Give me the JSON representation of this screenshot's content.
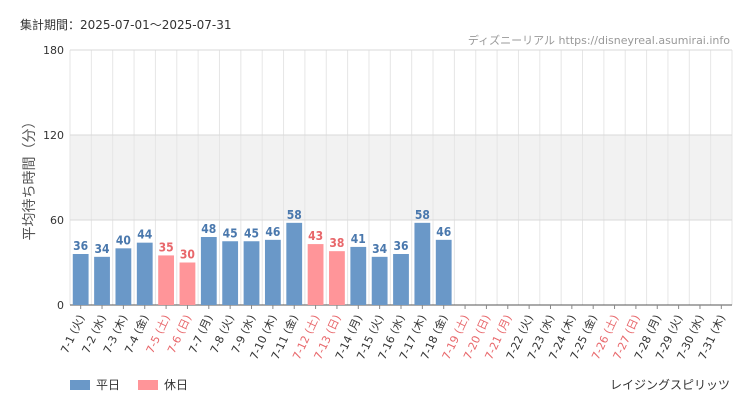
{
  "header": {
    "period_label": "集計期間：2025-07-01～2025-07-31",
    "source_label": "ディズニーリアル https://disneyreal.asumirai.info"
  },
  "footer": {
    "attraction_name": "レイジングスピリッツ"
  },
  "colors": {
    "weekday": "#6a98c8",
    "holiday": "#ff9599",
    "weekday_text": "#4a78ad",
    "holiday_text": "#e8676b",
    "band": "#f2f2f2"
  },
  "chart_data": {
    "type": "bar",
    "ylabel": "平均待ち時間（分）",
    "ylim": [
      0,
      180
    ],
    "yticks": [
      0,
      60,
      120,
      180
    ],
    "shaded_band": [
      60,
      120
    ],
    "categories": [
      "7-1 (火)",
      "7-2 (水)",
      "7-3 (木)",
      "7-4 (金)",
      "7-5 (土)",
      "7-6 (日)",
      "7-7 (月)",
      "7-8 (火)",
      "7-9 (水)",
      "7-10 (木)",
      "7-11 (金)",
      "7-12 (土)",
      "7-13 (日)",
      "7-14 (月)",
      "7-15 (火)",
      "7-16 (水)",
      "7-17 (木)",
      "7-18 (金)",
      "7-19 (土)",
      "7-20 (日)",
      "7-21 (月)",
      "7-22 (火)",
      "7-23 (水)",
      "7-24 (木)",
      "7-25 (金)",
      "7-26 (土)",
      "7-27 (日)",
      "7-28 (月)",
      "7-29 (火)",
      "7-30 (水)",
      "7-31 (木)"
    ],
    "holiday": [
      false,
      false,
      false,
      false,
      true,
      true,
      false,
      false,
      false,
      false,
      false,
      true,
      true,
      false,
      false,
      false,
      false,
      false,
      true,
      true,
      true,
      false,
      false,
      false,
      false,
      true,
      true,
      false,
      false,
      false,
      false
    ],
    "values": [
      36,
      34,
      40,
      44,
      35,
      30,
      48,
      45,
      45,
      46,
      58,
      43,
      38,
      41,
      34,
      36,
      58,
      46,
      null,
      null,
      null,
      null,
      null,
      null,
      null,
      null,
      null,
      null,
      null,
      null,
      null
    ],
    "legend": [
      {
        "name": "平日",
        "color_key": "weekday"
      },
      {
        "name": "休日",
        "color_key": "holiday"
      }
    ],
    "legend_position": "bottom-left",
    "grid": true
  }
}
